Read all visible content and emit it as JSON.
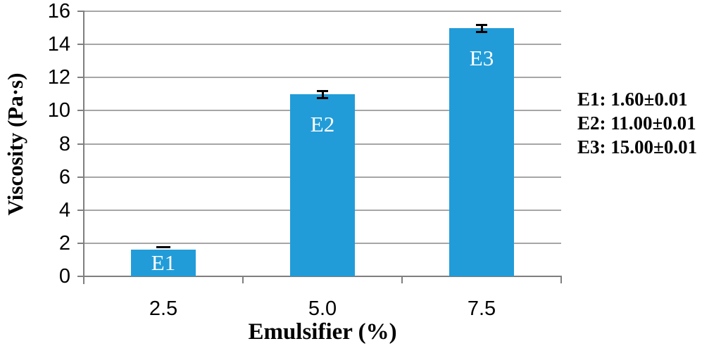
{
  "chart_data": {
    "type": "bar",
    "title": "",
    "xlabel": "Emulsifier (%)",
    "ylabel": "Viscosity (Pa·s)",
    "categories": [
      "2.5",
      "5.0",
      "7.5"
    ],
    "series": [
      {
        "name": "Viscosity",
        "values": [
          1.6,
          11.0,
          15.0
        ]
      }
    ],
    "bar_labels": [
      "E1",
      "E2",
      "E3"
    ],
    "errors": [
      0.01,
      0.01,
      0.01
    ],
    "error_markers": [
      "dash",
      "ibeam",
      "ibeam"
    ],
    "ylim": [
      0,
      16
    ],
    "ytick_step": 2,
    "yticks": [
      "0",
      "2",
      "4",
      "6",
      "8",
      "10",
      "12",
      "14",
      "16"
    ],
    "grid": "horizontal",
    "legend": "none",
    "colors": {
      "bar": "#219CD8",
      "gridline": "#A6A6A6",
      "axis": "#7F7F7F",
      "bar_label": "#FFFFFF",
      "error": "#000000",
      "text": "#000000"
    },
    "annotations": [
      "E1: 1.60±0.01",
      "E2: 11.00±0.01",
      "E3: 15.00±0.01"
    ]
  }
}
